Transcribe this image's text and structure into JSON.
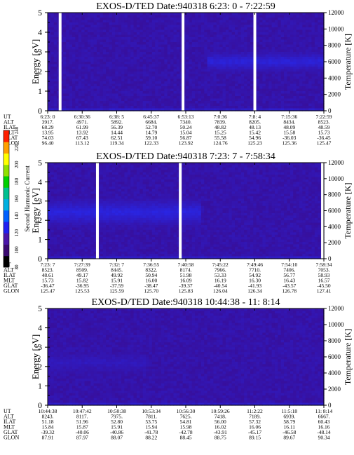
{
  "chart_data": [
    {
      "type": "heatmap",
      "title": "EXOS-D/TED   Date:940318   6:23: 0 - 7:22:59",
      "ylabel": "Energy [eV]",
      "y2label": "Temperature [K]",
      "yticks": [
        "0",
        "1",
        "2",
        "3",
        "4",
        "5"
      ],
      "y2ticks": [
        "0",
        "2000",
        "4000",
        "6000",
        "8000",
        "10000",
        "12000"
      ],
      "ylim": [
        0,
        5
      ],
      "y2lim": [
        0,
        12000
      ],
      "band": {
        "center_ev": 2.5,
        "width_ev": 0.5,
        "start_frac": 0.58,
        "end_frac": 1.0,
        "intensity": 0.75
      },
      "gaps": [
        0.04,
        0.485,
        0.745
      ],
      "table": {
        "UT": [
          "6:23: 0",
          "6:30:36",
          "6:38: 5",
          "6:45:37",
          "6:53:13",
          "7:0:36",
          "7:8: 4",
          "7:15:36",
          "7:22:59"
        ],
        "ALT": [
          "3917.",
          "4971.",
          "5892.",
          "6684.",
          "7340.",
          "7839.",
          "8205.",
          "8434.",
          "8523."
        ],
        "ILAT": [
          "68.29",
          "61.99",
          "56.39",
          "52.70",
          "50.24",
          "48.82",
          "48.13",
          "48.09",
          "48.59"
        ],
        "MLT": [
          "13.95",
          "13.92",
          "14.44",
          "14.79",
          "15.04",
          "15.25",
          "15.42",
          "15.58",
          "15.73"
        ],
        "GLAT": [
          "74.03",
          "67.43",
          "62.51",
          "59.10",
          "56.87",
          "55.58",
          "54.96",
          "-36.03",
          "-36.45"
        ],
        "GLON": [
          "96.40",
          "113.12",
          "119.34",
          "122.33",
          "123.92",
          "124.76",
          "125.23",
          "125.36",
          "125.47"
        ]
      }
    },
    {
      "type": "heatmap",
      "title": "EXOS-D/TED   Date:940318   7:23: 7 - 7:58:34",
      "ylabel": "Energy [eV]",
      "y2label": "Temperature [K]",
      "yticks": [
        "0",
        "1",
        "2",
        "3",
        "4",
        "5"
      ],
      "y2ticks": [
        "0",
        "2000",
        "4000",
        "6000",
        "8000",
        "10000",
        "12000"
      ],
      "ylim": [
        0,
        5
      ],
      "y2lim": [
        0,
        12000
      ],
      "band": {
        "center_ev": 2.4,
        "width_ev": 0.7,
        "start_frac": 0.0,
        "end_frac": 0.55,
        "intensity": 0.8
      },
      "gaps": [
        0.175,
        0.475,
        0.99
      ],
      "table": {
        "UT": [
          "7:23: 7",
          "7:27:39",
          "7:32: 7",
          "7:36:55",
          "7:40:58",
          "7:45:22",
          "7:49:46",
          "7:54:10",
          "7:58:34"
        ],
        "ALT": [
          "8523.",
          "8509.",
          "8445.",
          "8322.",
          "8174.",
          "7966.",
          "7710.",
          "7406.",
          "7053."
        ],
        "ILAT": [
          "48.61",
          "49.17",
          "49.92",
          "50.94",
          "51.98",
          "53.33",
          "54.92",
          "56.77",
          "58.93"
        ],
        "MLT": [
          "15.73",
          "15.82",
          "15.91",
          "16.00",
          "16.09",
          "16.19",
          "16.30",
          "16.43",
          "16.57"
        ],
        "GLAT": [
          "-36.47",
          "-36.95",
          "-37.59",
          "-38.47",
          "-39.37",
          "-40.54",
          "-41.93",
          "-43.57",
          "-45.50"
        ],
        "GLON": [
          "125.47",
          "125.53",
          "125.59",
          "125.70",
          "125.83",
          "126.04",
          "126.34",
          "126.78",
          "127.41"
        ]
      }
    },
    {
      "type": "heatmap",
      "title": "EXOS-D/TED   Date:940318   10:44:38 - 11: 8:14",
      "ylabel": "Energy [eV]",
      "y2label": "Temperature [K]",
      "yticks": [
        "0",
        "1",
        "2",
        "3",
        "4",
        "5"
      ],
      "y2ticks": [
        "0",
        "2000",
        "4000",
        "6000",
        "8000",
        "10000",
        "12000"
      ],
      "ylim": [
        0,
        5
      ],
      "y2lim": [
        0,
        12000
      ],
      "band": {
        "center_ev": 2.2,
        "width_ev": 0.6,
        "start_frac": 0.0,
        "end_frac": 0.35,
        "intensity": 0.45
      },
      "gaps": [],
      "table": {
        "UT": [
          "10:44:38",
          "10:47:42",
          "10:50:38",
          "10:53:34",
          "10:56:30",
          "10:59:26",
          "11:2:22",
          "11:5:18",
          "11: 8:14"
        ],
        "ALT": [
          "8243.",
          "8117.",
          "7975.",
          "7811.",
          "7625.",
          "7418.",
          "7189.",
          "6939.",
          "6667."
        ],
        "ILAT": [
          "51.18",
          "51.96",
          "52.80",
          "53.75",
          "54.81",
          "56.00",
          "57.32",
          "58.79",
          "60.43"
        ],
        "MLT": [
          "15.84",
          "15.87",
          "15.91",
          "15.94",
          "15.98",
          "16.02",
          "16.06",
          "16.11",
          "16.16"
        ],
        "GLAT": [
          "-39.32",
          "-40.06",
          "-40.86",
          "-41.78",
          "-42.78",
          "-43.91",
          "-45.17",
          "-46.58",
          "-48.14"
        ],
        "GLON": [
          "87.91",
          "87.97",
          "88.07",
          "88.22",
          "88.45",
          "88.75",
          "89.15",
          "89.67",
          "90.34"
        ]
      }
    }
  ],
  "colorbar": {
    "label": "Second Harmonic Current",
    "ticks": [
      "80",
      "100",
      "120",
      "140",
      "160",
      "180",
      "200",
      "220",
      "240"
    ],
    "colors": [
      "#000000",
      "#3a0a70",
      "#4a16a8",
      "#2020f0",
      "#0060ff",
      "#00b0e0",
      "#00c090",
      "#00d000",
      "#90e000",
      "#ffff00",
      "#ffa000",
      "#ff2000"
    ]
  }
}
